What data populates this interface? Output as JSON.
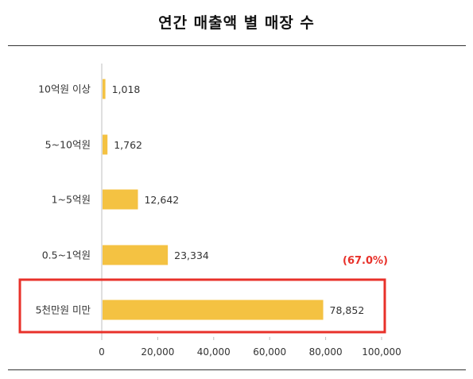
{
  "title": "연간 매출액 별 매장 수",
  "chart_data": {
    "type": "bar",
    "orientation": "horizontal",
    "categories": [
      "10억원 이상",
      "5~10억원",
      "1~5억원",
      "0.5~1억원",
      "5천만원 미만"
    ],
    "values": [
      1018,
      1762,
      12642,
      23334,
      78852
    ],
    "value_labels": [
      "1,018",
      "1,762",
      "12,642",
      "23,334",
      "78,852"
    ],
    "xlim": [
      0,
      100000
    ],
    "xticks": [
      0,
      20000,
      40000,
      60000,
      80000,
      100000
    ],
    "xtick_labels": [
      "0",
      "20,000",
      "40,000",
      "60,000",
      "80,000",
      "100,000"
    ],
    "grid": false,
    "bar_color": "#f4c242",
    "highlight": {
      "category": "5천만원 미만",
      "annotation": "(67.0%)",
      "box_color": "#e8312a",
      "annotation_color": "#e8312a"
    }
  }
}
